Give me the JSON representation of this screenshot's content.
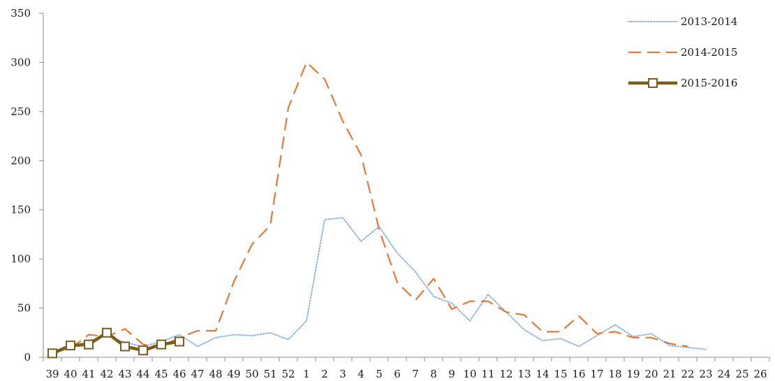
{
  "chart_data": {
    "type": "line",
    "title": "",
    "xlabel": "",
    "ylabel": "",
    "ylim": [
      0,
      350
    ],
    "yticks": [
      0,
      50,
      100,
      150,
      200,
      250,
      300,
      350
    ],
    "grid": false,
    "legend_position": "top-right",
    "categories": [
      "39",
      "40",
      "41",
      "42",
      "43",
      "44",
      "45",
      "46",
      "47",
      "48",
      "49",
      "50",
      "51",
      "52",
      "1",
      "2",
      "3",
      "4",
      "5",
      "6",
      "7",
      "8",
      "9",
      "10",
      "11",
      "12",
      "13",
      "14",
      "15",
      "16",
      "17",
      "18",
      "19",
      "20",
      "21",
      "22",
      "23",
      "24",
      "25",
      "26"
    ],
    "series": [
      {
        "name": "2013-2014",
        "color": "#8fb3d9",
        "style": "dotted",
        "values": [
          3,
          10,
          17,
          22,
          15,
          11,
          16,
          23,
          11,
          20,
          23,
          22,
          25,
          18,
          37,
          140,
          142,
          118,
          133,
          106,
          87,
          62,
          55,
          37,
          64,
          46,
          28,
          17,
          19,
          11,
          22,
          33,
          21,
          24,
          12,
          10,
          8,
          null,
          null,
          null
        ]
      },
      {
        "name": "2014-2015",
        "color": "#e07b39",
        "style": "dashed",
        "values": [
          5,
          9,
          23,
          21,
          29,
          13,
          11,
          20,
          27,
          27,
          77,
          115,
          134,
          254,
          300,
          283,
          240,
          206,
          130,
          76,
          58,
          80,
          49,
          57,
          57,
          46,
          43,
          26,
          26,
          42,
          24,
          26,
          20,
          20,
          14,
          11,
          null,
          null,
          null,
          null
        ]
      },
      {
        "name": "2015-2016",
        "color": "#7a5c1e",
        "style": "solid-square-markers",
        "values": [
          4,
          12,
          13,
          25,
          11,
          7,
          13,
          16,
          null,
          null,
          null,
          null,
          null,
          null,
          null,
          null,
          null,
          null,
          null,
          null,
          null,
          null,
          null,
          null,
          null,
          null,
          null,
          null,
          null,
          null,
          null,
          null,
          null,
          null,
          null,
          null,
          null,
          null,
          null,
          null
        ]
      }
    ]
  }
}
